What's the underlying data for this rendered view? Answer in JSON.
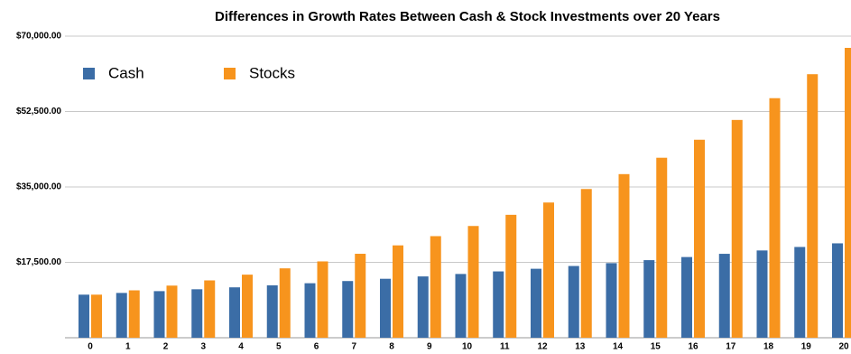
{
  "chart_data": {
    "type": "bar",
    "title": "Differences in Growth Rates Between Cash & Stock Investments over 20 Years",
    "categories": [
      "0",
      "1",
      "2",
      "3",
      "4",
      "5",
      "6",
      "7",
      "8",
      "9",
      "10",
      "11",
      "12",
      "13",
      "14",
      "15",
      "16",
      "17",
      "18",
      "19",
      "20"
    ],
    "series": [
      {
        "name": "Cash",
        "color": "#3b6da6",
        "values": [
          10000,
          10400,
          10816,
          11249,
          11699,
          12167,
          12653,
          13159,
          13686,
          14233,
          14802,
          15395,
          16010,
          16651,
          17317,
          18009,
          18730,
          19479,
          20258,
          21068,
          21911
        ]
      },
      {
        "name": "Stocks",
        "color": "#f7941d",
        "values": [
          10000,
          11000,
          12100,
          13310,
          14641,
          16105,
          17716,
          19487,
          21436,
          23579,
          25937,
          28531,
          31384,
          34523,
          37975,
          41772,
          45950,
          50545,
          55599,
          61159,
          67275
        ]
      }
    ],
    "ylim": [
      0,
      70000
    ],
    "yticks": [
      {
        "value": 17500,
        "label": "$17,500.00"
      },
      {
        "value": 35000,
        "label": "$35,000.00"
      },
      {
        "value": 52500,
        "label": "$52,500.00"
      },
      {
        "value": 70000,
        "label": "$70,000.00"
      }
    ],
    "grid": true,
    "legend": "top-left"
  }
}
